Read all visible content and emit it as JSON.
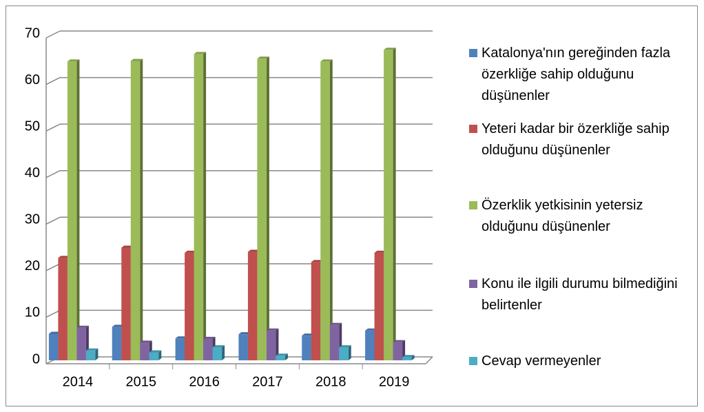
{
  "chart_data": {
    "type": "bar",
    "categories": [
      "2014",
      "2015",
      "2016",
      "2017",
      "2018",
      "2019"
    ],
    "series": [
      {
        "name": "Katalonya'nın gereğinden fazla özerkliğe sahip olduğunu düşünenler",
        "color": "#4f81bd",
        "values": [
          5.7,
          7.2,
          4.7,
          5.6,
          5.3,
          6.4
        ]
      },
      {
        "name": "Yeteri kadar bir özerkliğe sahip olduğunu düşünenler",
        "color": "#c0504d",
        "values": [
          22,
          24.2,
          23.1,
          23.3,
          21.1,
          23.1
        ]
      },
      {
        "name": "Özerklik yetkisinin yetersiz olduğunu düşünenler",
        "color": "#9bbb59",
        "values": [
          64.2,
          64.3,
          65.8,
          64.8,
          64.2,
          66.7
        ]
      },
      {
        "name": "Konu ile ilgili durumu bilmediğini belirtenler",
        "color": "#8064a2",
        "values": [
          7,
          3.8,
          4.6,
          6.4,
          7.6,
          3.9
        ]
      },
      {
        "name": "Cevap vermeyenler",
        "color": "#4bacc6",
        "values": [
          2.1,
          1.7,
          2.8,
          1,
          2.8,
          0.7
        ]
      }
    ],
    "ylim": [
      0,
      70
    ],
    "yticks": [
      0,
      10,
      20,
      30,
      40,
      50,
      60,
      70
    ],
    "grid": true,
    "legend": "right"
  }
}
